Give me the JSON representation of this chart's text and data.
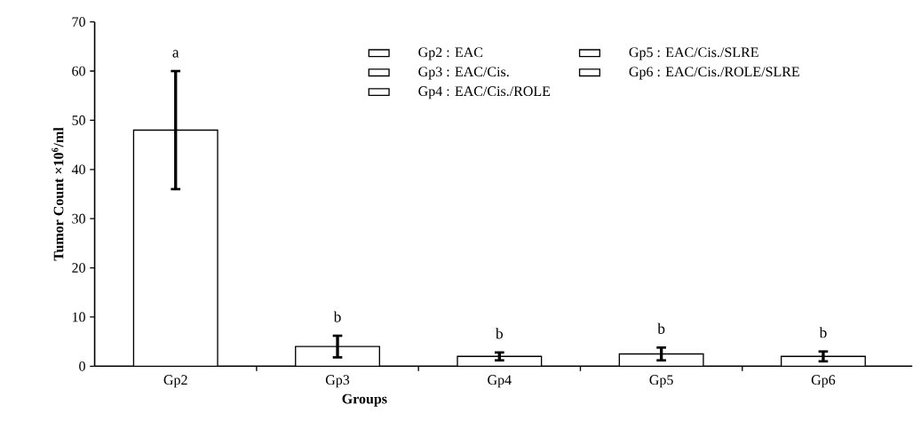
{
  "chart_data": {
    "type": "bar",
    "xlabel": "Groups",
    "ylabel": "Tumor Count ×10$^{6}$/ml",
    "categories": [
      "Gp2",
      "Gp3",
      "Gp4",
      "Gp5",
      "Gp6"
    ],
    "series": [
      {
        "name": "Gp2 : EAC",
        "color": "#000000",
        "values": [
          48,
          null,
          null,
          null,
          null
        ],
        "errors": [
          12,
          null,
          null,
          null,
          null
        ]
      },
      {
        "name": "Gp3 : EAC/Cis.",
        "color": "#000000",
        "values": [
          null,
          4,
          null,
          null,
          null
        ],
        "errors": [
          null,
          2.2,
          null,
          null,
          null
        ]
      },
      {
        "name": "Gp4 : EAC/Cis./ROLE",
        "color": "#000000",
        "values": [
          null,
          null,
          2,
          null,
          null
        ],
        "errors": [
          null,
          null,
          0.8,
          null,
          null
        ]
      },
      {
        "name": "Gp5 : EAC/Cis./SLRE",
        "color": "#000000",
        "values": [
          null,
          null,
          null,
          2.5,
          null
        ],
        "errors": [
          null,
          null,
          null,
          1.3,
          null
        ]
      },
      {
        "name": "Gp6 : EAC/Cis./ROLE/SLRE",
        "color": "#000000",
        "values": [
          null,
          null,
          null,
          null,
          2
        ],
        "errors": [
          null,
          null,
          null,
          null,
          1
        ]
      }
    ],
    "ylim": [
      0,
      70
    ],
    "yticks": [
      0,
      10,
      20,
      30,
      40,
      50,
      60,
      70
    ],
    "grid": false,
    "legend": "top",
    "annotations": [
      "a",
      "b",
      "b",
      "b",
      "b"
    ]
  }
}
